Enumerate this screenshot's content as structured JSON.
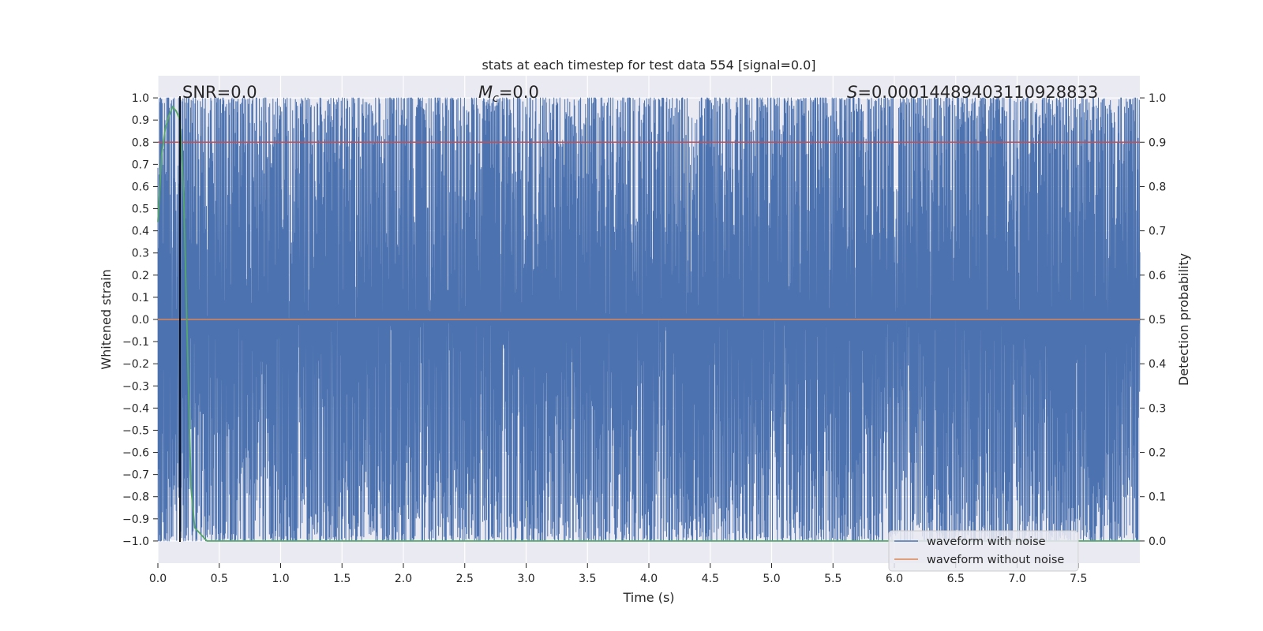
{
  "chart_data": {
    "type": "line",
    "title": "stats at each timestep for test data 554 [signal=0.0]",
    "xlabel": "Time (s)",
    "ylabel_left": "Whitened strain",
    "ylabel_right": "Detection probability",
    "xlim": [
      0.0,
      8.0
    ],
    "ylim_left": [
      -1.1,
      1.1
    ],
    "ylim_right": [
      -0.05,
      1.05
    ],
    "x_ticks": [
      "0.0",
      "0.5",
      "1.0",
      "1.5",
      "2.0",
      "2.5",
      "3.0",
      "3.5",
      "4.0",
      "4.5",
      "5.0",
      "5.5",
      "6.0",
      "6.5",
      "7.0",
      "7.5"
    ],
    "y_left_ticks": [
      "1.0",
      "0.9",
      "0.8",
      "0.7",
      "0.6",
      "0.5",
      "0.4",
      "0.3",
      "0.2",
      "0.1",
      "0.0",
      "−0.1",
      "−0.2",
      "−0.3",
      "−0.4",
      "−0.5",
      "−0.6",
      "−0.7",
      "−0.8",
      "−0.9",
      "−1.0"
    ],
    "y_right_ticks": [
      "1.0",
      "0.9",
      "0.8",
      "0.7",
      "0.6",
      "0.5",
      "0.4",
      "0.3",
      "0.2",
      "0.1",
      "0.0"
    ],
    "grid": true,
    "annotations": {
      "snr": "SNR=0.0",
      "mc_symbol": "M",
      "mc_subscript": "c",
      "mc_value": "=0.0",
      "s_symbol": "S",
      "s_value": "=0.00014489403110928833"
    },
    "colors": {
      "noise": "#4c72b0",
      "clean": "#dd8452",
      "probability": "#55a868",
      "threshold": "#c44e52",
      "marker": "#000000",
      "plot_bg": "#eaeaf2"
    },
    "series": [
      {
        "name": "waveform with noise",
        "axis": "left",
        "description_range": [
          -1.0,
          1.0
        ],
        "note": "whitened noisy strain densely oscillating across full range"
      },
      {
        "name": "waveform without noise",
        "axis": "left",
        "x": [
          0.0,
          8.0
        ],
        "y": [
          0.0,
          0.0
        ]
      },
      {
        "name": "",
        "axis": "right",
        "x": [
          0.0,
          0.03,
          0.06,
          0.09,
          0.12,
          0.15,
          0.18,
          0.21,
          0.24,
          0.27,
          0.3,
          0.4,
          8.0
        ],
        "y": [
          0.72,
          0.87,
          0.93,
          0.96,
          0.98,
          0.97,
          0.95,
          0.78,
          0.45,
          0.12,
          0.03,
          0.0,
          0.0
        ]
      }
    ],
    "threshold": {
      "axis": "right",
      "value": 0.9
    },
    "marker_line": {
      "x": 0.18
    },
    "legend": {
      "placement": "lower-right",
      "entries": [
        "waveform with noise",
        "waveform without noise"
      ]
    }
  }
}
